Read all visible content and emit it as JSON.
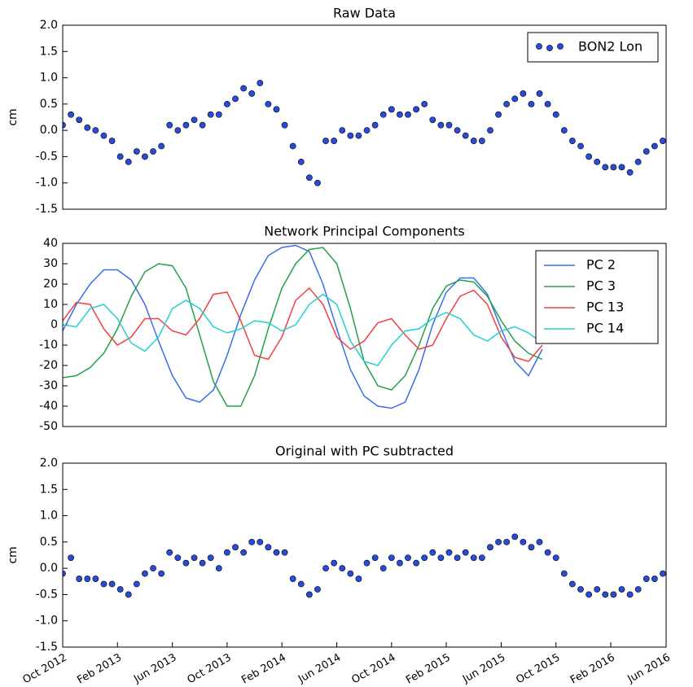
{
  "chart_data": [
    {
      "type": "scatter",
      "title": "Raw Data",
      "ylabel": "cm",
      "legend": "upper right",
      "xlim": [
        2012.75,
        2016.42
      ],
      "ylim": [
        -1.5,
        2.0
      ],
      "yticks": [
        {
          "value": 2.0,
          "label": "2.0"
        },
        1.5,
        {
          "value": 1.0,
          "label": "1.0"
        },
        0.5,
        {
          "value": 0.0,
          "label": "0.0"
        },
        -0.5,
        {
          "value": -1.0,
          "label": "-1.0"
        },
        -1.5
      ],
      "series": [
        {
          "name": "BON2 Lon",
          "color": "#2a4bd7",
          "x": [
            2012.75,
            2012.8,
            2012.85,
            2012.9,
            2012.95,
            2013.0,
            2013.05,
            2013.1,
            2013.15,
            2013.2,
            2013.25,
            2013.3,
            2013.35,
            2013.4,
            2013.45,
            2013.5,
            2013.55,
            2013.6,
            2013.65,
            2013.7,
            2013.75,
            2013.8,
            2013.85,
            2013.9,
            2013.95,
            2014.0,
            2014.05,
            2014.1,
            2014.15,
            2014.2,
            2014.25,
            2014.3,
            2014.35,
            2014.4,
            2014.45,
            2014.5,
            2014.55,
            2014.6,
            2014.65,
            2014.7,
            2014.75,
            2014.8,
            2014.85,
            2014.9,
            2014.95,
            2015.0,
            2015.05,
            2015.1,
            2015.15,
            2015.2,
            2015.25,
            2015.3,
            2015.35,
            2015.4,
            2015.45,
            2015.5,
            2015.55,
            2015.6,
            2015.65,
            2015.7,
            2015.75,
            2015.8,
            2015.85,
            2015.9,
            2015.95,
            2016.0,
            2016.05,
            2016.1,
            2016.15,
            2016.2,
            2016.25,
            2016.3,
            2016.35,
            2016.4
          ],
          "values": [
            0.1,
            0.3,
            0.2,
            0.05,
            0.0,
            -0.1,
            -0.2,
            -0.5,
            -0.6,
            -0.4,
            -0.5,
            -0.4,
            -0.3,
            0.1,
            0.0,
            0.1,
            0.2,
            0.1,
            0.3,
            0.3,
            0.5,
            0.6,
            0.8,
            0.7,
            0.9,
            0.5,
            0.4,
            0.1,
            -0.3,
            -0.6,
            -0.9,
            -1.0,
            -0.2,
            -0.2,
            0.0,
            -0.1,
            -0.1,
            0.0,
            0.1,
            0.3,
            0.4,
            0.3,
            0.3,
            0.4,
            0.5,
            0.2,
            0.1,
            0.1,
            0.0,
            -0.1,
            -0.2,
            -0.2,
            0.0,
            0.3,
            0.5,
            0.6,
            0.7,
            0.5,
            0.7,
            0.5,
            0.3,
            0.0,
            -0.2,
            -0.3,
            -0.5,
            -0.6,
            -0.7,
            -0.7,
            -0.7,
            -0.8,
            -0.6,
            -0.4,
            -0.3,
            -0.2
          ]
        }
      ]
    },
    {
      "type": "line",
      "title": "Network Principal Components",
      "legend": "upper right",
      "xlim": [
        2012.75,
        2016.42
      ],
      "ylim": [
        -50,
        40
      ],
      "yticks": [
        40,
        30,
        20,
        10,
        0,
        -10,
        -20,
        -30,
        -40,
        -50
      ],
      "x": [
        2012.75,
        2012.833,
        2012.917,
        2013.0,
        2013.083,
        2013.167,
        2013.25,
        2013.333,
        2013.417,
        2013.5,
        2013.583,
        2013.667,
        2013.75,
        2013.833,
        2013.917,
        2014.0,
        2014.083,
        2014.167,
        2014.25,
        2014.333,
        2014.417,
        2014.5,
        2014.583,
        2014.667,
        2014.75,
        2014.833,
        2014.917,
        2015.0,
        2015.083,
        2015.167,
        2015.25,
        2015.333,
        2015.417,
        2015.5,
        2015.583,
        2015.667
      ],
      "series": [
        {
          "name": "PC 2",
          "color": "#3a6ee8",
          "values": [
            -3,
            10,
            20,
            27,
            27,
            22,
            10,
            -8,
            -25,
            -36,
            -38,
            -32,
            -15,
            5,
            22,
            34,
            38,
            39,
            36,
            20,
            -2,
            -22,
            -35,
            -40,
            -41,
            -38,
            -22,
            0,
            16,
            23,
            23,
            15,
            -2,
            -18,
            -25,
            -12
          ]
        },
        {
          "name": "PC 3",
          "color": "#22a04a",
          "values": [
            -26,
            -25,
            -21,
            -14,
            -2,
            14,
            26,
            30,
            29,
            18,
            -5,
            -28,
            -40,
            -40,
            -25,
            -2,
            18,
            30,
            37,
            38,
            30,
            8,
            -18,
            -30,
            -32,
            -25,
            -10,
            8,
            19,
            22,
            21,
            14,
            2,
            -8,
            -14,
            -17
          ]
        },
        {
          "name": "PC 13",
          "color": "#f04040",
          "values": [
            2,
            11,
            10,
            -2,
            -10,
            -6,
            3,
            3,
            -3,
            -5,
            3,
            15,
            16,
            2,
            -15,
            -17,
            -6,
            12,
            18,
            10,
            -6,
            -12,
            -8,
            1,
            3,
            -5,
            -12,
            -10,
            3,
            14,
            17,
            10,
            -6,
            -16,
            -18,
            -10
          ]
        },
        {
          "name": "PC 14",
          "color": "#22d0d0",
          "values": [
            0,
            -1,
            8,
            10,
            3,
            -9,
            -13,
            -6,
            8,
            12,
            8,
            -1,
            -4,
            -2,
            2,
            1,
            -3,
            0,
            10,
            15,
            10,
            -8,
            -18,
            -20,
            -10,
            -3,
            -2,
            3,
            6,
            3,
            -5,
            -8,
            -3,
            -1,
            -4,
            -9
          ]
        }
      ]
    },
    {
      "type": "scatter",
      "title": "Original with PC subtracted",
      "ylabel": "cm",
      "xlim": [
        2012.75,
        2016.42
      ],
      "xticks": [
        {
          "value": 2012.75,
          "label": "Oct 2012"
        },
        {
          "value": 2013.083,
          "label": "Feb 2013"
        },
        {
          "value": 2013.417,
          "label": "Jun 2013"
        },
        {
          "value": 2013.75,
          "label": "Oct 2013"
        },
        {
          "value": 2014.083,
          "label": "Feb 2014"
        },
        {
          "value": 2014.417,
          "label": "Jun 2014"
        },
        {
          "value": 2014.75,
          "label": "Oct 2014"
        },
        {
          "value": 2015.083,
          "label": "Feb 2015"
        },
        {
          "value": 2015.417,
          "label": "Jun 2015"
        },
        {
          "value": 2015.75,
          "label": "Oct 2015"
        },
        {
          "value": 2016.083,
          "label": "Feb 2016"
        },
        {
          "value": 2016.42,
          "label": "Jun 2016"
        }
      ],
      "ylim": [
        -1.5,
        2.0
      ],
      "yticks": [
        {
          "value": 2.0,
          "label": "2.0"
        },
        1.5,
        {
          "value": 1.0,
          "label": "1.0"
        },
        0.5,
        {
          "value": 0.0,
          "label": "0.0"
        },
        -0.5,
        {
          "value": -1.0,
          "label": "-1.0"
        },
        -1.5
      ],
      "series": [
        {
          "color": "#2a4bd7",
          "x": [
            2012.75,
            2012.8,
            2012.85,
            2012.9,
            2012.95,
            2013.0,
            2013.05,
            2013.1,
            2013.15,
            2013.2,
            2013.25,
            2013.3,
            2013.35,
            2013.4,
            2013.45,
            2013.5,
            2013.55,
            2013.6,
            2013.65,
            2013.7,
            2013.75,
            2013.8,
            2013.85,
            2013.9,
            2013.95,
            2014.0,
            2014.05,
            2014.1,
            2014.15,
            2014.2,
            2014.25,
            2014.3,
            2014.35,
            2014.4,
            2014.45,
            2014.5,
            2014.55,
            2014.6,
            2014.65,
            2014.7,
            2014.75,
            2014.8,
            2014.85,
            2014.9,
            2014.95,
            2015.0,
            2015.05,
            2015.1,
            2015.15,
            2015.2,
            2015.25,
            2015.3,
            2015.35,
            2015.4,
            2015.45,
            2015.5,
            2015.55,
            2015.6,
            2015.65,
            2015.7,
            2015.75,
            2015.8,
            2015.85,
            2015.9,
            2015.95,
            2016.0,
            2016.05,
            2016.1,
            2016.15,
            2016.2,
            2016.25,
            2016.3,
            2016.35,
            2016.4
          ],
          "values": [
            -0.1,
            0.2,
            -0.2,
            -0.2,
            -0.2,
            -0.3,
            -0.3,
            -0.4,
            -0.5,
            -0.3,
            -0.1,
            0.0,
            -0.1,
            0.3,
            0.2,
            0.1,
            0.2,
            0.1,
            0.2,
            0.0,
            0.3,
            0.4,
            0.3,
            0.5,
            0.5,
            0.4,
            0.3,
            0.3,
            -0.2,
            -0.3,
            -0.5,
            -0.4,
            0.0,
            0.1,
            0.0,
            -0.1,
            -0.2,
            0.1,
            0.2,
            0.0,
            0.2,
            0.1,
            0.2,
            0.1,
            0.2,
            0.3,
            0.2,
            0.3,
            0.2,
            0.3,
            0.2,
            0.2,
            0.4,
            0.5,
            0.5,
            0.6,
            0.5,
            0.4,
            0.5,
            0.3,
            0.2,
            -0.1,
            -0.3,
            -0.4,
            -0.5,
            -0.4,
            -0.5,
            -0.5,
            -0.4,
            -0.5,
            -0.4,
            -0.2,
            -0.2,
            -0.1
          ]
        }
      ]
    }
  ]
}
